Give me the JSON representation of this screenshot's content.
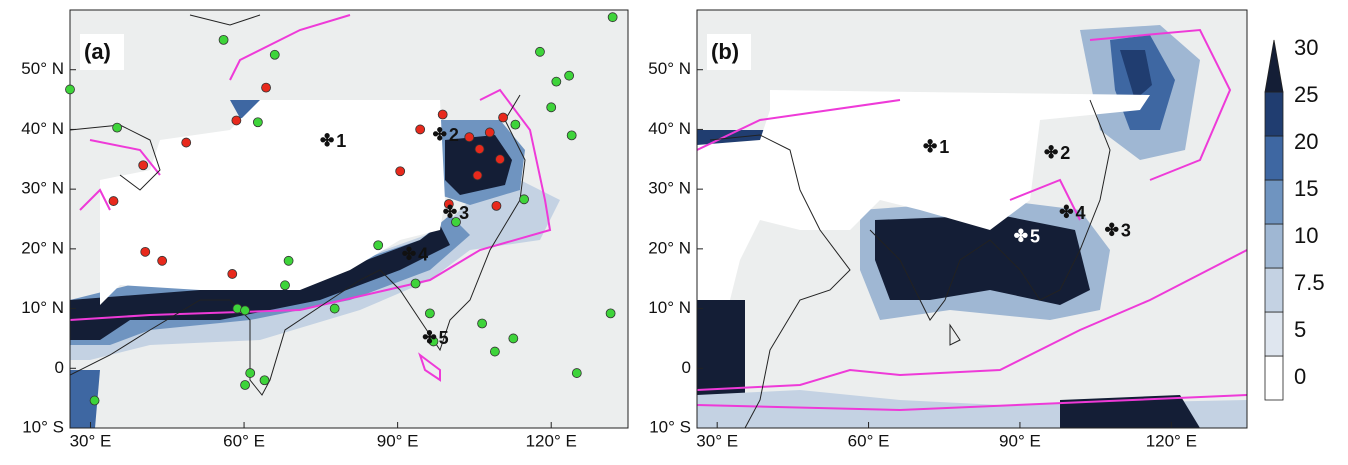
{
  "map_data": {
    "panels": [
      {
        "label": "(a)",
        "sites": [
          {
            "label": "1",
            "lon": 78,
            "lat": 38
          },
          {
            "label": "2",
            "lon": 100,
            "lat": 39
          },
          {
            "label": "3",
            "lon": 102,
            "lat": 26
          },
          {
            "label": "4",
            "lon": 94,
            "lat": 19
          },
          {
            "label": "5",
            "lon": 98,
            "lat": 5
          }
        ],
        "markers": [
          {
            "color": "#e8291c",
            "points": [
              [
                48.7,
                37.8
              ],
              [
                40.3,
                34
              ],
              [
                34.5,
                28
              ],
              [
                40.7,
                19.5
              ],
              [
                44,
                18
              ],
              [
                57.7,
                15.8
              ],
              [
                58.5,
                41.5
              ],
              [
                64.3,
                47
              ],
              [
                90.5,
                33
              ],
              [
                94.4,
                40
              ],
              [
                98.8,
                42.5
              ],
              [
                104,
                38.7
              ],
              [
                108,
                39.5
              ],
              [
                110.6,
                42
              ],
              [
                106,
                36.7
              ],
              [
                110,
                35
              ],
              [
                105.6,
                32.3
              ],
              [
                109.3,
                27.2
              ],
              [
                100,
                27.5
              ]
            ]
          },
          {
            "color": "#3ed43a",
            "points": [
              [
                26,
                46.7
              ],
              [
                35.2,
                40.3
              ],
              [
                56,
                55
              ],
              [
                66,
                52.5
              ],
              [
                62.7,
                41.2
              ],
              [
                113,
                40.8
              ],
              [
                114.7,
                28.3
              ],
              [
                117.8,
                53
              ],
              [
                121,
                48
              ],
              [
                123.5,
                49
              ],
              [
                120,
                43.7
              ],
              [
                124,
                39
              ],
              [
                132,
                58.8
              ],
              [
                131.6,
                9.2
              ],
              [
                125,
                -0.8
              ],
              [
                112.6,
                5
              ],
              [
                109,
                2.8
              ],
              [
                106.5,
                7.5
              ],
              [
                101.4,
                24.5
              ],
              [
                86.2,
                20.6
              ],
              [
                68.7,
                18
              ],
              [
                58.7,
                10
              ],
              [
                60.2,
                9.7
              ],
              [
                68,
                13.9
              ],
              [
                77.7,
                10
              ],
              [
                93.5,
                14.2
              ],
              [
                96.3,
                9.2
              ],
              [
                30.8,
                -5.4
              ],
              [
                61.2,
                -0.8
              ],
              [
                64,
                -2
              ],
              [
                60.2,
                -2.8
              ],
              [
                97,
                4.5
              ]
            ]
          }
        ]
      },
      {
        "label": "(b)",
        "sites": [
          {
            "label": "1",
            "lon": 74,
            "lat": 37
          },
          {
            "label": "2",
            "lon": 98,
            "lat": 36
          },
          {
            "label": "3",
            "lon": 110,
            "lat": 23
          },
          {
            "label": "4",
            "lon": 101,
            "lat": 26
          },
          {
            "label": "5",
            "lon": 92,
            "lat": 22,
            "color": "#ffffff"
          }
        ],
        "markers": []
      }
    ],
    "lonlim": [
      26,
      135
    ],
    "latlim": [
      -10,
      60
    ],
    "lonticks": [
      {
        "value": 30,
        "label": "30° E"
      },
      {
        "value": 60,
        "label": "60° E"
      },
      {
        "value": 90,
        "label": "90° E"
      },
      {
        "value": 120,
        "label": "120° E"
      }
    ],
    "latticks": [
      {
        "value": -10,
        "label": "10° S"
      },
      0,
      {
        "value": 10,
        "label": "10° N"
      },
      {
        "value": 20,
        "label": "20° N"
      },
      {
        "value": 30,
        "label": "30° N"
      },
      {
        "value": 40,
        "label": "40° N"
      },
      {
        "value": 50,
        "label": "50° N"
      }
    ],
    "colorbar": {
      "levels": [
        0,
        5,
        7.5,
        10,
        15,
        20,
        25,
        30
      ],
      "colors": [
        "#ffffff",
        "#dfe6ef",
        "#c4d2e3",
        "#9fb7d3",
        "#6f94c0",
        "#3e67a2",
        "#203d70",
        "#141e36"
      ]
    }
  }
}
